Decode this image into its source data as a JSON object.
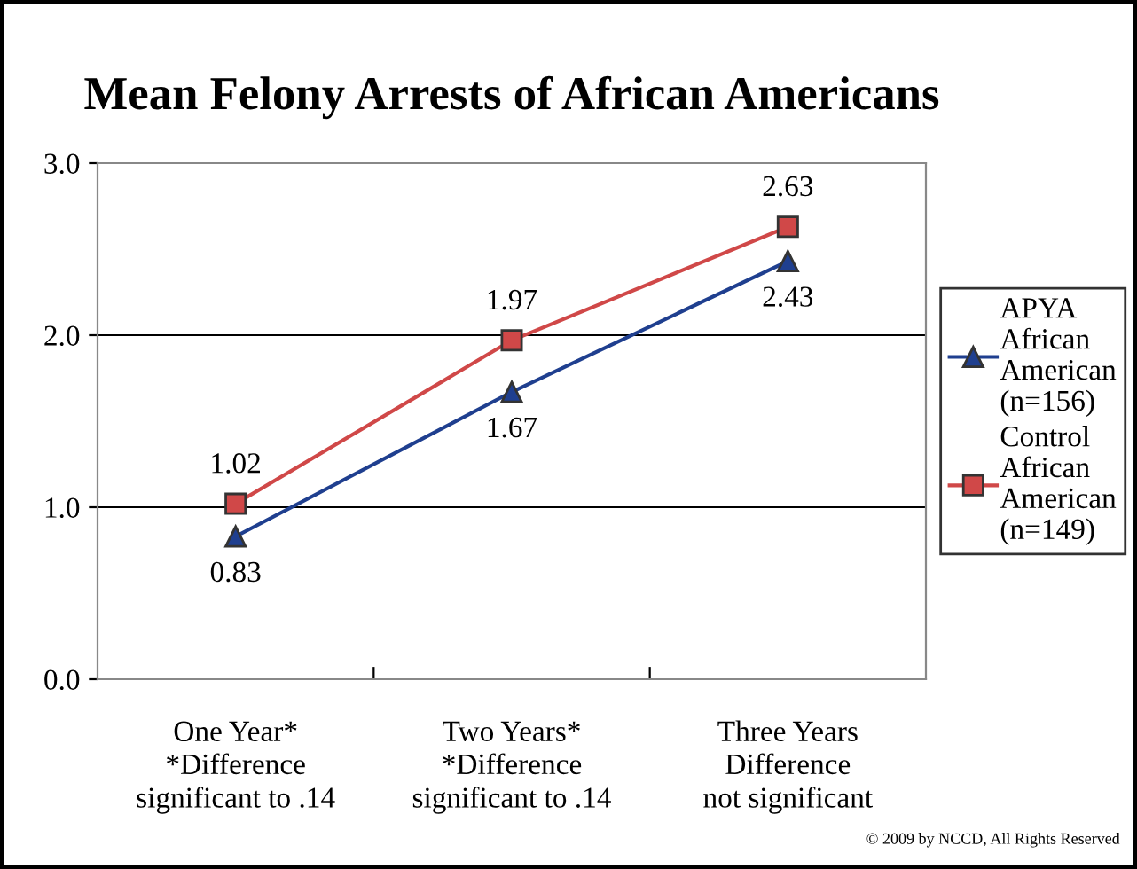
{
  "chart_data": {
    "type": "line",
    "title": "Mean Felony Arrests of African Americans",
    "categories": [
      "One Year*\n*Difference\nsignificant to .14",
      "Two Years*\n*Difference\nsignificant to .14",
      "Three Years\nDifference\nnot significant"
    ],
    "series": [
      {
        "name": "APYA\nAfrican\nAmerican\n(n=156)",
        "color": "#1f3f8f",
        "marker": "triangle",
        "values": [
          0.83,
          1.67,
          2.43
        ]
      },
      {
        "name": "Control\nAfrican\nAmerican\n(n=149)",
        "color": "#d04848",
        "marker": "square",
        "values": [
          1.02,
          1.97,
          2.63
        ]
      }
    ],
    "ylim": [
      0,
      3
    ],
    "yticks": [
      {
        "value": 0,
        "label": "0.0"
      },
      {
        "value": 1,
        "label": "1.0"
      },
      {
        "value": 2,
        "label": "2.0"
      },
      {
        "value": 3,
        "label": "3.0"
      }
    ],
    "grid": "y",
    "legend": "right",
    "data_labels": true,
    "annotations": [
      "© 2009 by NCCD, All Rights Reserved"
    ]
  }
}
